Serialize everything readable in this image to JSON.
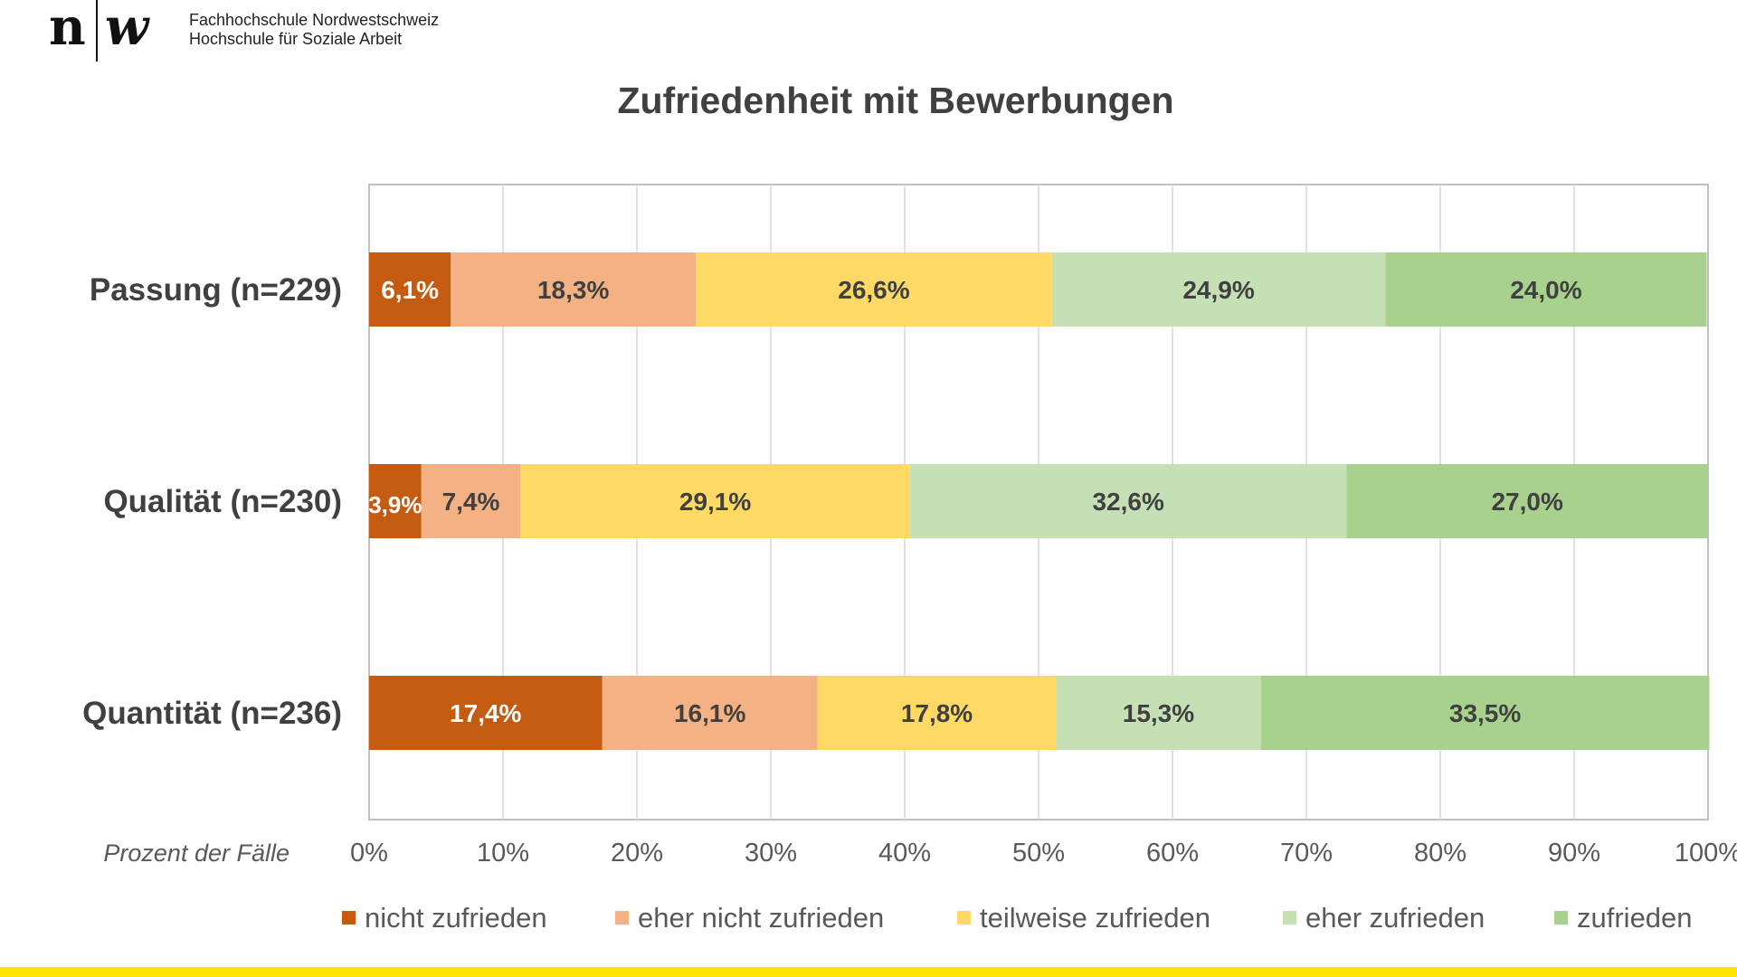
{
  "header": {
    "logo_text": "n|w",
    "school_line1": "Fachhochschule Nordwestschweiz",
    "school_line2": "Hochschule für Soziale Arbeit"
  },
  "colors": {
    "nicht_zufrieden": "#c55a11",
    "eher_nicht_zufrieden": "#f4b183",
    "teilweise_zufrieden": "#ffd966",
    "eher_zufrieden": "#c5e0b4",
    "zufrieden": "#a9d18e",
    "brand_yellow": "#ffe600"
  },
  "chart_data": {
    "type": "bar",
    "orientation": "horizontal",
    "stacked": true,
    "title": "Zufriedenheit mit Bewerbungen",
    "categories": [
      "Passung (n=229)",
      "Qualität (n=230)",
      "Quantität (n=236)"
    ],
    "series": [
      {
        "name": "nicht zufrieden",
        "color_key": "nicht_zufrieden",
        "values": [
          6.1,
          3.9,
          17.4
        ],
        "labels": [
          "6,1%",
          "3,9%",
          "17,4%"
        ],
        "label_color": "#ffffff"
      },
      {
        "name": "eher nicht zufrieden",
        "color_key": "eher_nicht_zufrieden",
        "values": [
          18.3,
          7.4,
          16.1
        ],
        "labels": [
          "18,3%",
          "7,4%",
          "16,1%"
        ],
        "label_color": "#404040"
      },
      {
        "name": "teilweise zufrieden",
        "color_key": "teilweise_zufrieden",
        "values": [
          26.6,
          29.1,
          17.8
        ],
        "labels": [
          "26,6%",
          "29,1%",
          "17,8%"
        ],
        "label_color": "#404040"
      },
      {
        "name": "eher zufrieden",
        "color_key": "eher_zufrieden",
        "values": [
          24.9,
          32.6,
          15.3
        ],
        "labels": [
          "24,9%",
          "32,6%",
          "15,3%"
        ],
        "label_color": "#404040"
      },
      {
        "name": "zufrieden",
        "color_key": "zufrieden",
        "values": [
          24.0,
          27.0,
          33.5
        ],
        "labels": [
          "24,0%",
          "27,0%",
          "33,5%"
        ],
        "label_color": "#404040"
      }
    ],
    "xlabel": "Prozent der Fälle",
    "xlim": [
      0,
      100
    ],
    "xticks": [
      "0%",
      "10%",
      "20%",
      "30%",
      "40%",
      "50%",
      "60%",
      "70%",
      "80%",
      "90%",
      "100%"
    ],
    "grid": true,
    "legend_position": "bottom"
  }
}
